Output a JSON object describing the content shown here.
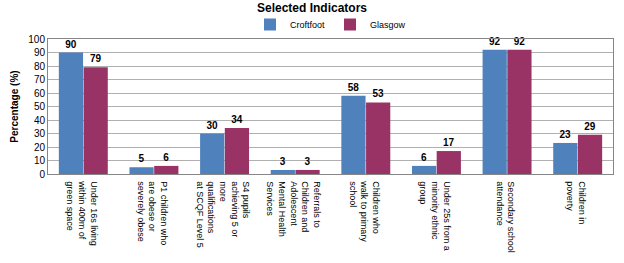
{
  "chart_data": {
    "type": "bar",
    "title": "Selected Indicators",
    "y_label": "Percentage (%)",
    "categories": [
      "Under 16s living within 400m of green space",
      "P1 children who are obese or severely obese",
      "S4 pupils achieving 5 or more qualifications at SCQF Level 5",
      "Referrals to Children and Adolescent Mental Health Services",
      "Children who walk to primary school",
      "Under 25s from a minority ethnic group",
      "Secondary school attendance",
      "Children in poverty"
    ],
    "series": [
      {
        "name": "Croftfoot",
        "color": "#4f81bd",
        "values": [
          90,
          5,
          30,
          3,
          58,
          6,
          92,
          23
        ]
      },
      {
        "name": "Glasgow",
        "color": "#993366",
        "values": [
          79,
          6,
          34,
          3,
          53,
          17,
          92,
          29
        ]
      }
    ],
    "ylim": [
      0,
      100
    ],
    "yticks": [
      0,
      10,
      20,
      30,
      40,
      50,
      60,
      70,
      80,
      90,
      100
    ],
    "grid": true,
    "legend": "top",
    "data_labels": true
  }
}
